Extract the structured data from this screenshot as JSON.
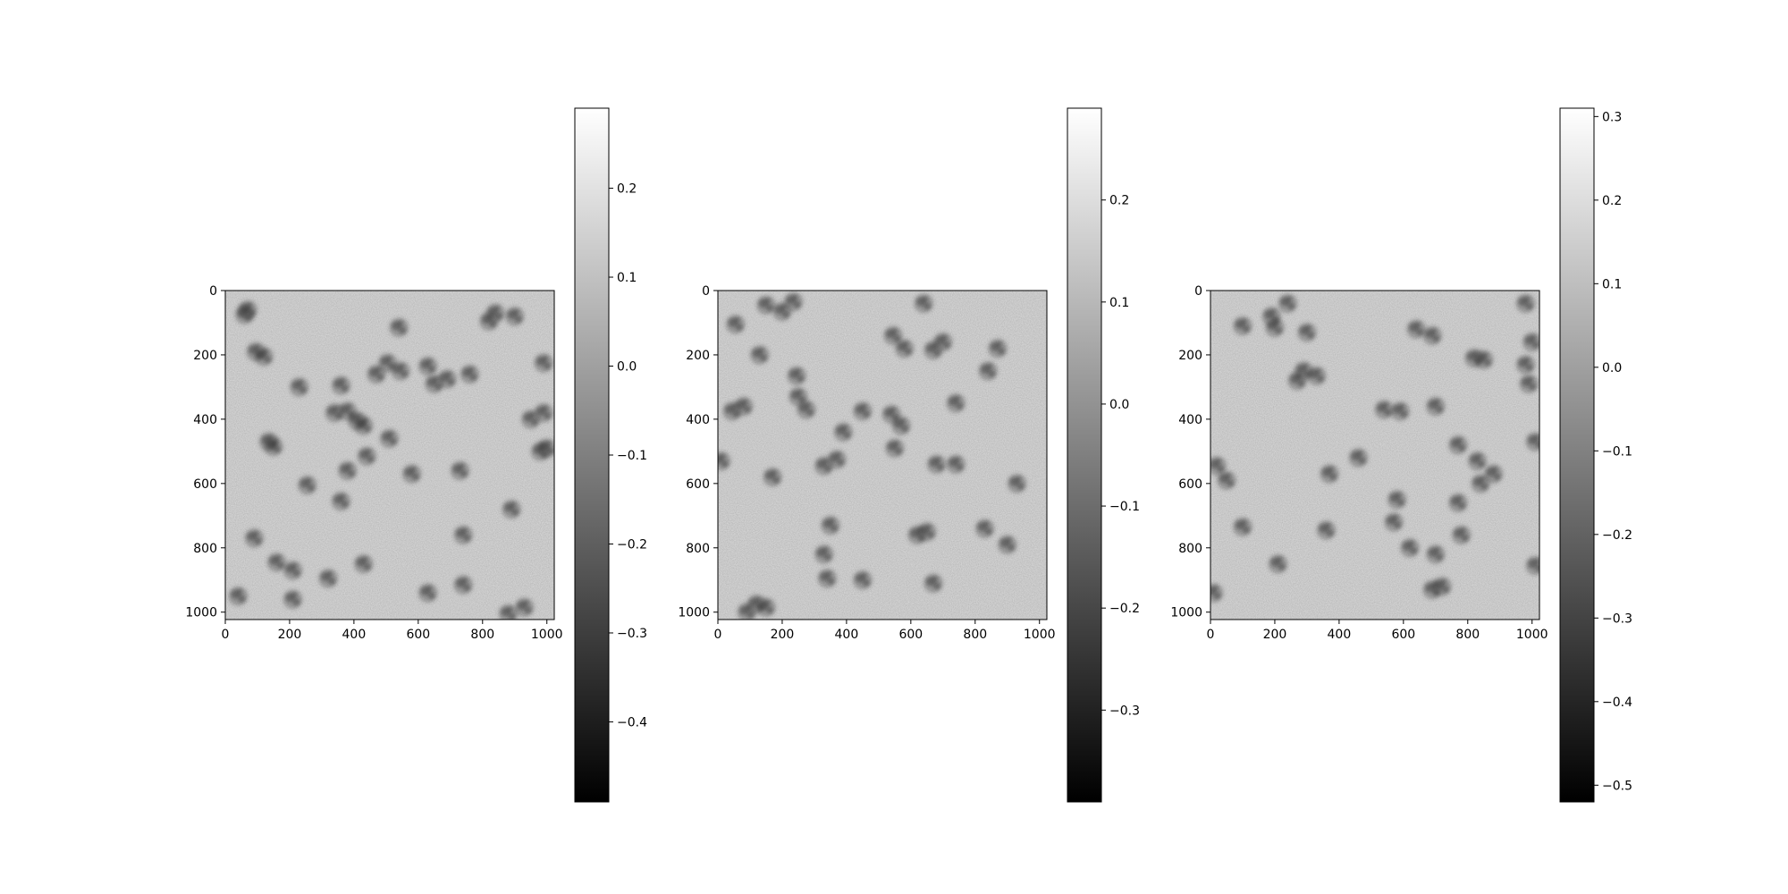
{
  "figure": {
    "background": "#ffffff",
    "colormap": "gray",
    "noise_base_color": "#9a9a9a",
    "particle_color": "#3a3a3a"
  },
  "chart_data": [
    {
      "type": "heatmap",
      "title": "",
      "xlabel": "",
      "ylabel": "",
      "xlim": [
        0,
        1023
      ],
      "ylim": [
        1023,
        0
      ],
      "xticks": [
        0,
        200,
        400,
        600,
        800,
        1000
      ],
      "yticks": [
        0,
        200,
        400,
        600,
        800,
        1000
      ],
      "colorbar": {
        "vmin": -0.49,
        "vmax": 0.29,
        "ticks": [
          -0.4,
          -0.3,
          -0.2,
          -0.1,
          0.0,
          0.1,
          0.2
        ],
        "tick_labels": [
          "−0.4",
          "−0.3",
          "−0.2",
          "−0.1",
          "0.0",
          "0.1",
          "0.2"
        ]
      },
      "background_level": 0.0,
      "particles": [
        [
          70,
          60
        ],
        [
          60,
          75
        ],
        [
          95,
          190
        ],
        [
          120,
          205
        ],
        [
          230,
          300
        ],
        [
          360,
          295
        ],
        [
          505,
          225
        ],
        [
          470,
          260
        ],
        [
          545,
          250
        ],
        [
          630,
          235
        ],
        [
          650,
          290
        ],
        [
          690,
          275
        ],
        [
          760,
          260
        ],
        [
          820,
          95
        ],
        [
          840,
          70
        ],
        [
          900,
          80
        ],
        [
          990,
          225
        ],
        [
          540,
          115
        ],
        [
          380,
          375
        ],
        [
          410,
          405
        ],
        [
          430,
          420
        ],
        [
          340,
          380
        ],
        [
          135,
          470
        ],
        [
          150,
          485
        ],
        [
          510,
          460
        ],
        [
          440,
          515
        ],
        [
          380,
          560
        ],
        [
          580,
          570
        ],
        [
          730,
          560
        ],
        [
          950,
          400
        ],
        [
          990,
          380
        ],
        [
          980,
          500
        ],
        [
          1000,
          490
        ],
        [
          255,
          605
        ],
        [
          360,
          655
        ],
        [
          890,
          680
        ],
        [
          90,
          770
        ],
        [
          740,
          760
        ],
        [
          160,
          845
        ],
        [
          210,
          870
        ],
        [
          430,
          850
        ],
        [
          320,
          895
        ],
        [
          740,
          915
        ],
        [
          630,
          940
        ],
        [
          210,
          960
        ],
        [
          40,
          950
        ],
        [
          880,
          1005
        ],
        [
          930,
          985
        ]
      ]
    },
    {
      "type": "heatmap",
      "title": "",
      "xlabel": "",
      "ylabel": "",
      "xlim": [
        0,
        1023
      ],
      "ylim": [
        1023,
        0
      ],
      "xticks": [
        0,
        200,
        400,
        600,
        800,
        1000
      ],
      "yticks": [
        0,
        200,
        400,
        600,
        800,
        1000
      ],
      "colorbar": {
        "vmin": -0.39,
        "vmax": 0.29,
        "ticks": [
          -0.3,
          -0.2,
          -0.1,
          0.0,
          0.1,
          0.2
        ],
        "tick_labels": [
          "−0.3",
          "−0.2",
          "−0.1",
          "0.0",
          "0.1",
          "0.2"
        ]
      },
      "background_level": 0.0,
      "particles": [
        [
          150,
          45
        ],
        [
          200,
          65
        ],
        [
          235,
          35
        ],
        [
          640,
          40
        ],
        [
          55,
          105
        ],
        [
          545,
          140
        ],
        [
          580,
          180
        ],
        [
          700,
          160
        ],
        [
          670,
          185
        ],
        [
          870,
          180
        ],
        [
          130,
          200
        ],
        [
          840,
          250
        ],
        [
          245,
          265
        ],
        [
          250,
          330
        ],
        [
          275,
          370
        ],
        [
          80,
          360
        ],
        [
          45,
          375
        ],
        [
          450,
          375
        ],
        [
          540,
          385
        ],
        [
          570,
          420
        ],
        [
          740,
          350
        ],
        [
          550,
          490
        ],
        [
          390,
          440
        ],
        [
          330,
          545
        ],
        [
          370,
          525
        ],
        [
          10,
          530
        ],
        [
          170,
          580
        ],
        [
          680,
          540
        ],
        [
          740,
          540
        ],
        [
          930,
          600
        ],
        [
          350,
          730
        ],
        [
          650,
          750
        ],
        [
          620,
          760
        ],
        [
          830,
          740
        ],
        [
          900,
          790
        ],
        [
          330,
          820
        ],
        [
          340,
          895
        ],
        [
          450,
          900
        ],
        [
          670,
          910
        ],
        [
          120,
          975
        ],
        [
          150,
          985
        ],
        [
          90,
          1000
        ]
      ]
    },
    {
      "type": "heatmap",
      "title": "",
      "xlabel": "",
      "ylabel": "",
      "xlim": [
        0,
        1023
      ],
      "ylim": [
        1023,
        0
      ],
      "xticks": [
        0,
        200,
        400,
        600,
        800,
        1000
      ],
      "yticks": [
        0,
        200,
        400,
        600,
        800,
        1000
      ],
      "colorbar": {
        "vmin": -0.52,
        "vmax": 0.31,
        "ticks": [
          -0.5,
          -0.4,
          -0.3,
          -0.2,
          -0.1,
          0.0,
          0.1,
          0.2,
          0.3
        ],
        "tick_labels": [
          "−0.5",
          "−0.4",
          "−0.3",
          "−0.2",
          "−0.1",
          "0.0",
          "0.1",
          "0.2",
          "0.3"
        ]
      },
      "background_level": 0.0,
      "particles": [
        [
          240,
          40
        ],
        [
          190,
          80
        ],
        [
          200,
          115
        ],
        [
          100,
          110
        ],
        [
          300,
          130
        ],
        [
          640,
          120
        ],
        [
          690,
          140
        ],
        [
          980,
          40
        ],
        [
          1000,
          160
        ],
        [
          980,
          230
        ],
        [
          820,
          210
        ],
        [
          850,
          215
        ],
        [
          290,
          250
        ],
        [
          270,
          280
        ],
        [
          330,
          265
        ],
        [
          990,
          290
        ],
        [
          540,
          370
        ],
        [
          590,
          375
        ],
        [
          700,
          360
        ],
        [
          1010,
          470
        ],
        [
          770,
          480
        ],
        [
          460,
          520
        ],
        [
          830,
          530
        ],
        [
          880,
          570
        ],
        [
          840,
          600
        ],
        [
          20,
          545
        ],
        [
          50,
          590
        ],
        [
          370,
          570
        ],
        [
          580,
          650
        ],
        [
          570,
          720
        ],
        [
          770,
          660
        ],
        [
          780,
          760
        ],
        [
          100,
          735
        ],
        [
          360,
          745
        ],
        [
          620,
          800
        ],
        [
          700,
          820
        ],
        [
          210,
          850
        ],
        [
          1010,
          855
        ],
        [
          720,
          920
        ],
        [
          690,
          930
        ],
        [
          10,
          940
        ]
      ]
    }
  ]
}
